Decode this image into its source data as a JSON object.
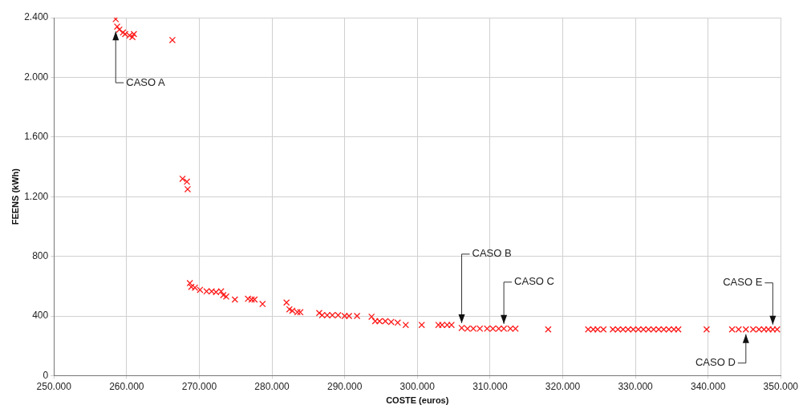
{
  "chart_data": {
    "type": "scatter",
    "xlabel": "COSTE (euros)",
    "ylabel": "FEENS (kWh)",
    "xlim": [
      250000,
      350000
    ],
    "ylim": [
      0,
      2400
    ],
    "xticks": [
      {
        "value": 250000,
        "label": "250.000"
      },
      {
        "value": 260000,
        "label": "260.000"
      },
      {
        "value": 270000,
        "label": "270.000"
      },
      {
        "value": 280000,
        "label": "280.000"
      },
      {
        "value": 290000,
        "label": "290.000"
      },
      {
        "value": 300000,
        "label": "300.000"
      },
      {
        "value": 310000,
        "label": "310.000"
      },
      {
        "value": 320000,
        "label": "320.000"
      },
      {
        "value": 330000,
        "label": "330.000"
      },
      {
        "value": 340000,
        "label": "340.000"
      },
      {
        "value": 350000,
        "label": "350.000"
      }
    ],
    "yticks": [
      0,
      400,
      800,
      {
        "value": 1200,
        "label": "1.200"
      },
      {
        "value": 1600,
        "label": "1.600"
      },
      {
        "value": 2000,
        "label": "2.000"
      },
      {
        "value": 2400,
        "label": "2.400"
      }
    ],
    "grid": true,
    "marker": "cross",
    "series": [
      {
        "color": "#ff1a1a",
        "x": [
          258500,
          258700,
          259000,
          259500,
          259800,
          260400,
          260800,
          261000,
          266300,
          267700,
          268300,
          268400,
          268700,
          268900,
          269400,
          270100,
          271000,
          271700,
          272300,
          273000,
          273300,
          273700,
          274900,
          276700,
          277200,
          277600,
          278700,
          282000,
          282400,
          282800,
          283500,
          283900,
          286500,
          286900,
          287600,
          288300,
          289100,
          290000,
          290600,
          291700,
          293700,
          294200,
          294800,
          295600,
          296400,
          297300,
          298400,
          300600,
          302900,
          303400,
          304100,
          304700,
          306100,
          306900,
          307700,
          308600,
          309600,
          310400,
          311200,
          311900,
          312800,
          313500,
          318000,
          323500,
          324200,
          324800,
          325600,
          326900,
          327600,
          328300,
          329000,
          329700,
          330400,
          331100,
          331800,
          332500,
          333200,
          333900,
          334600,
          335300,
          335900,
          339800,
          343300,
          344200,
          345200,
          346200,
          347000,
          347700,
          348300,
          348900,
          349500
        ],
        "values": [
          2390,
          2340,
          2320,
          2300,
          2290,
          2280,
          2270,
          2290,
          2250,
          1320,
          1300,
          1250,
          620,
          595,
          590,
          575,
          565,
          565,
          560,
          565,
          540,
          530,
          510,
          515,
          510,
          510,
          480,
          490,
          445,
          435,
          425,
          425,
          420,
          405,
          405,
          405,
          405,
          400,
          400,
          400,
          395,
          365,
          365,
          365,
          360,
          355,
          340,
          340,
          340,
          340,
          340,
          340,
          320,
          315,
          315,
          315,
          315,
          315,
          315,
          315,
          315,
          315,
          310,
          310,
          310,
          310,
          310,
          310,
          310,
          310,
          310,
          310,
          310,
          310,
          310,
          310,
          310,
          310,
          310,
          310,
          310,
          310,
          310,
          310,
          310,
          310,
          310,
          310,
          310,
          310,
          310
        ]
      }
    ],
    "annotations": [
      {
        "text": "CASO A",
        "x": 258500,
        "y": 2340
      },
      {
        "text": "CASO B",
        "x": 306100,
        "y": 320
      },
      {
        "text": "CASO C",
        "x": 311900,
        "y": 315
      },
      {
        "text": "CASO D",
        "x": 345200,
        "y": 310
      },
      {
        "text": "CASO E",
        "x": 348900,
        "y": 310
      }
    ]
  }
}
